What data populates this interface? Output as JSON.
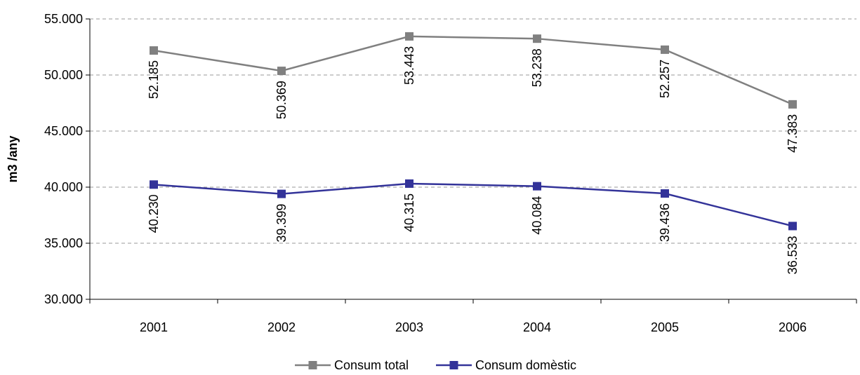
{
  "chart_data": {
    "type": "line",
    "title": "",
    "xlabel": "",
    "ylabel": "m3 /any",
    "categories": [
      "2001",
      "2002",
      "2003",
      "2004",
      "2005",
      "2006"
    ],
    "ylim": [
      30000,
      55000
    ],
    "yticks": [
      30000,
      35000,
      40000,
      45000,
      50000,
      55000
    ],
    "ytick_labels": [
      "30.000",
      "35.000",
      "40.000",
      "45.000",
      "50.000",
      "55.000"
    ],
    "grid": "horizontal-dashed",
    "legend_position": "bottom-center",
    "series": [
      {
        "name": "Consum total",
        "color": "#808080",
        "marker": "square",
        "values": [
          52185,
          50369,
          53443,
          53238,
          52257,
          47383
        ],
        "labels": [
          "52.185",
          "50.369",
          "53.443",
          "53.238",
          "52.257",
          "47.383"
        ]
      },
      {
        "name": "Consum domèstic",
        "color": "#333399",
        "marker": "square",
        "values": [
          40230,
          39399,
          40315,
          40084,
          39436,
          36533
        ],
        "labels": [
          "40.230",
          "39.399",
          "40.315",
          "40.084",
          "39.436",
          "36.533"
        ]
      }
    ]
  }
}
